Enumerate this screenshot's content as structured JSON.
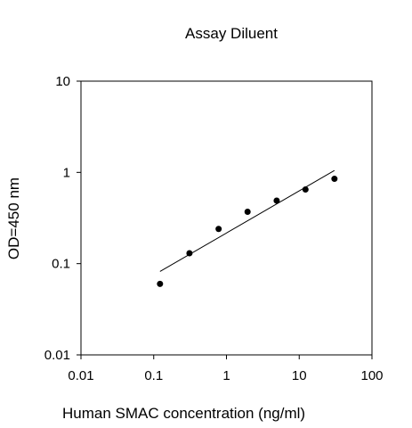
{
  "chart_data": {
    "type": "scatter",
    "title": "Assay Diluent",
    "xlabel": "Human SMAC concentration (ng/ml)",
    "ylabel": "OD=450 nm",
    "xscale": "log",
    "yscale": "log",
    "xlim": [
      0.01,
      100
    ],
    "ylim": [
      0.01,
      10
    ],
    "xticks": [
      "0.01",
      "0.1",
      "1",
      "10",
      "100"
    ],
    "yticks": [
      "0.01",
      "0.1",
      "1",
      "10"
    ],
    "grid": false,
    "points": [
      {
        "x": 0.122,
        "y": 0.06
      },
      {
        "x": 0.31,
        "y": 0.13
      },
      {
        "x": 0.78,
        "y": 0.24
      },
      {
        "x": 1.95,
        "y": 0.37
      },
      {
        "x": 4.9,
        "y": 0.49
      },
      {
        "x": 12.2,
        "y": 0.65
      },
      {
        "x": 30.5,
        "y": 0.85
      }
    ],
    "fit_line": {
      "x": [
        0.122,
        30.5
      ],
      "y": [
        0.082,
        1.05
      ]
    },
    "colors": {
      "points": "#000000",
      "line": "#000000",
      "axes": "#000000"
    }
  }
}
